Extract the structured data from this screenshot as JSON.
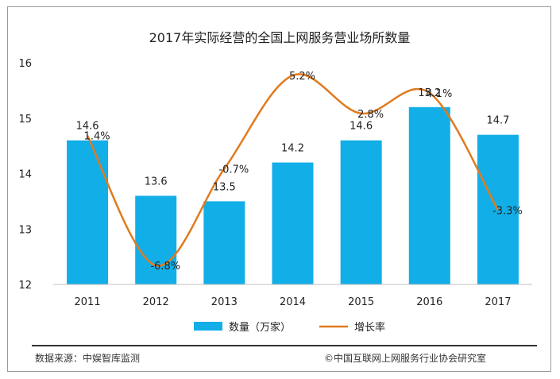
{
  "chart_data": {
    "type": "bar+line",
    "title": "2017年实际经营的全国上网服务营业场所数量",
    "categories": [
      "2011",
      "2012",
      "2013",
      "2014",
      "2015",
      "2016",
      "2017"
    ],
    "series": [
      {
        "name": "数量（万家）",
        "type": "bar",
        "color": "#12aee8",
        "values": [
          14.6,
          13.6,
          13.5,
          14.2,
          14.6,
          15.2,
          14.7
        ],
        "labels": [
          "14.6",
          "13.6",
          "13.5",
          "14.2",
          "14.6",
          "15.2",
          "14.7"
        ]
      },
      {
        "name": "增长率",
        "type": "line",
        "color": "#e07b1f",
        "values": [
          1.4,
          -6.8,
          -0.7,
          5.2,
          2.8,
          4.1,
          -3.3
        ],
        "labels": [
          "1.4%",
          "-6.8%",
          "-0.7%",
          "5.2%",
          "2.8%",
          "4.1%",
          "-3.3%"
        ],
        "ylim": [
          -8,
          6
        ]
      }
    ],
    "ylim": [
      12,
      16
    ],
    "yticks": [
      "12",
      "13",
      "14",
      "15",
      "16"
    ],
    "gridlines": false,
    "legend_position": "bottom"
  },
  "footer": {
    "source": "数据来源：中娱智库监测",
    "copyright": "©中国互联网上网服务行业协会研究室"
  }
}
